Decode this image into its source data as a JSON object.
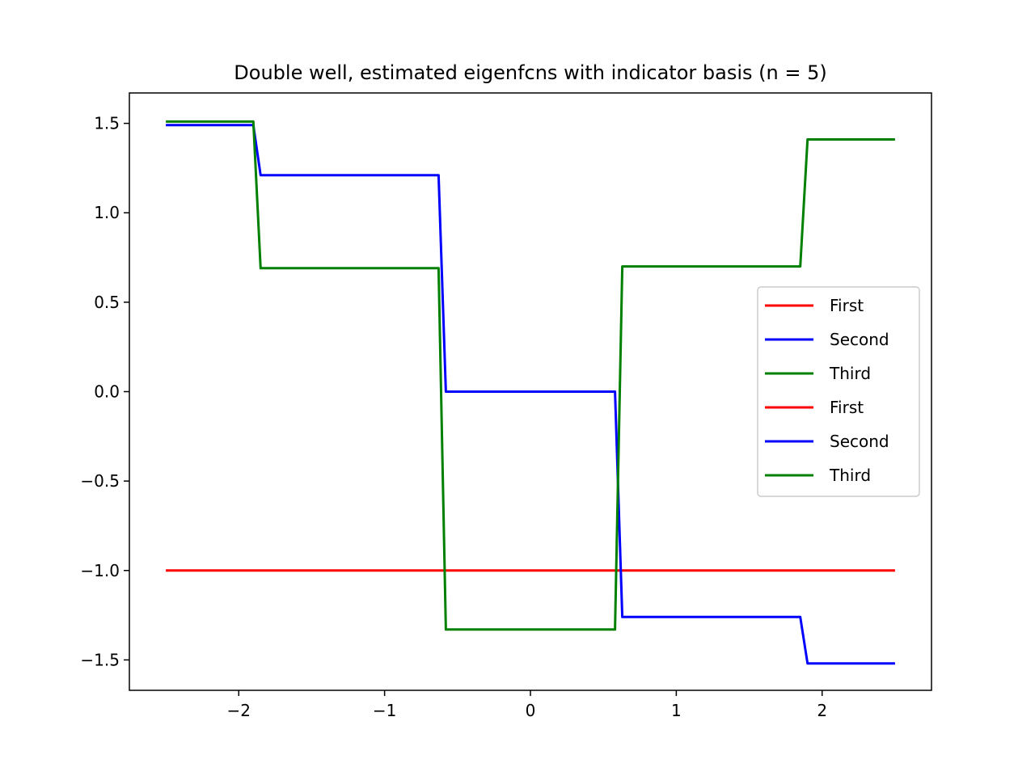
{
  "chart_data": {
    "type": "line",
    "title": "Double well, estimated eigenfcns with indicator basis (n = 5)",
    "xlabel": "",
    "ylabel": "",
    "xlim": [
      -2.75,
      2.75
    ],
    "ylim": [
      -1.67,
      1.67
    ],
    "xticks": [
      -2,
      -1,
      0,
      1,
      2
    ],
    "xtick_labels": [
      "−2",
      "−1",
      "0",
      "1",
      "2"
    ],
    "yticks": [
      1.5,
      1.0,
      0.5,
      0.0,
      -0.5,
      -1.0,
      -1.5
    ],
    "ytick_labels": [
      "1.5",
      "1.0",
      "0.5",
      "0.0",
      "−0.5",
      "−1.0",
      "−1.5"
    ],
    "grid": false,
    "legend_position": "right",
    "legend": [
      {
        "label": "First",
        "color": "#ff0000"
      },
      {
        "label": "Second",
        "color": "#0000ff"
      },
      {
        "label": "Third",
        "color": "#008000"
      },
      {
        "label": "First",
        "color": "#ff0000"
      },
      {
        "label": "Second",
        "color": "#0000ff"
      },
      {
        "label": "Third",
        "color": "#008000"
      }
    ],
    "series": [
      {
        "color": "#ff0000",
        "x": [
          -2.5,
          2.5
        ],
        "y": [
          -1.0,
          -1.0
        ]
      },
      {
        "color": "#0000ff",
        "x": [
          -2.5,
          -1.9,
          -1.85,
          -0.63,
          -0.58,
          0.58,
          0.63,
          1.85,
          1.9,
          2.5
        ],
        "y": [
          1.49,
          1.49,
          1.21,
          1.21,
          0.0,
          0.0,
          -1.26,
          -1.26,
          -1.52,
          -1.52
        ]
      },
      {
        "color": "#008000",
        "x": [
          -2.5,
          -1.9,
          -1.85,
          -0.63,
          -0.58,
          0.58,
          0.63,
          1.85,
          1.9,
          2.5
        ],
        "y": [
          1.51,
          1.51,
          0.69,
          0.69,
          -1.33,
          -1.33,
          0.7,
          0.7,
          1.41,
          1.41
        ]
      }
    ]
  }
}
